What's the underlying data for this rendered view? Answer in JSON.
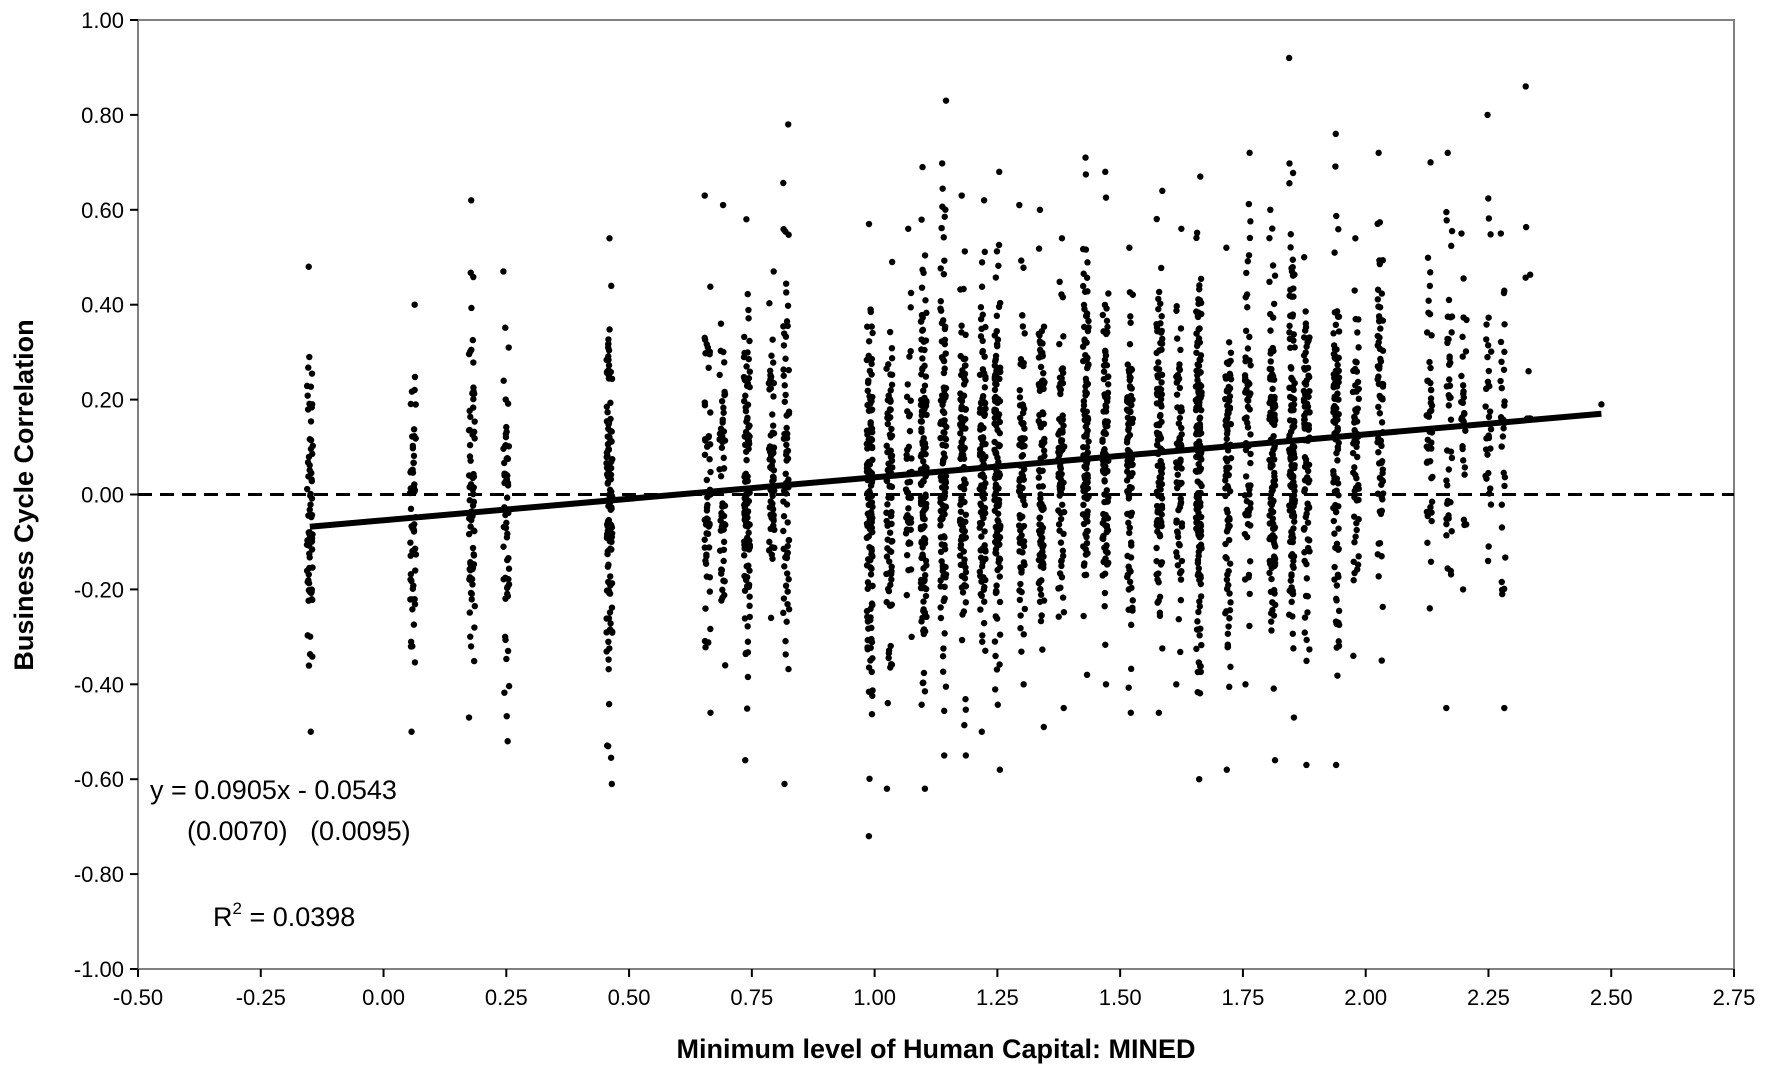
{
  "chart_data": {
    "type": "scatter",
    "xlabel": "Minimum level of Human Capital:  MINED",
    "ylabel": "Business Cycle Correlation",
    "xlim": [
      -0.5,
      2.75
    ],
    "ylim": [
      -1.0,
      1.0
    ],
    "x_ticks": [
      "-0.50",
      "-0.25",
      "0.00",
      "0.25",
      "0.50",
      "0.75",
      "1.00",
      "1.25",
      "1.50",
      "1.75",
      "2.00",
      "2.25",
      "2.50",
      "2.75"
    ],
    "y_ticks": [
      "1.00",
      "0.80",
      "0.60",
      "0.40",
      "0.20",
      "0.00",
      "-0.20",
      "-0.40",
      "-0.60",
      "-0.80",
      "-1.00"
    ],
    "reference_line": {
      "y": 0.0,
      "style": "dashed"
    },
    "trendline": {
      "slope": 0.0905,
      "intercept": -0.0543,
      "x_start": -0.15,
      "x_end": 2.48
    },
    "annotations": {
      "equation": "y = 0.0905x - 0.0543",
      "std_errors": "(0.0070)   (0.0095)",
      "r2_prefix": "R",
      "r2_sup": "2",
      "r2_value": " = 0.0398"
    },
    "series": [
      {
        "marker_color": "#000000",
        "columns": [
          {
            "x": -0.15,
            "ymin": -0.5,
            "ymax": 0.48,
            "n": 70
          },
          {
            "x": 0.06,
            "ymin": -0.5,
            "ymax": 0.4,
            "n": 55
          },
          {
            "x": 0.18,
            "ymin": -0.47,
            "ymax": 0.62,
            "n": 75
          },
          {
            "x": 0.25,
            "ymin": -0.52,
            "ymax": 0.47,
            "n": 60
          },
          {
            "x": 0.46,
            "ymin": -0.61,
            "ymax": 0.54,
            "n": 120
          },
          {
            "x": 0.66,
            "ymin": -0.46,
            "ymax": 0.63,
            "n": 55
          },
          {
            "x": 0.69,
            "ymin": -0.36,
            "ymax": 0.61,
            "n": 55
          },
          {
            "x": 0.74,
            "ymin": -0.56,
            "ymax": 0.58,
            "n": 110
          },
          {
            "x": 0.79,
            "ymin": -0.26,
            "ymax": 0.47,
            "n": 70
          },
          {
            "x": 0.82,
            "ymin": -0.61,
            "ymax": 0.78,
            "n": 70
          },
          {
            "x": 0.99,
            "ymin": -0.72,
            "ymax": 0.57,
            "n": 130
          },
          {
            "x": 1.03,
            "ymin": -0.62,
            "ymax": 0.49,
            "n": 90
          },
          {
            "x": 1.07,
            "ymin": -0.3,
            "ymax": 0.56,
            "n": 45
          },
          {
            "x": 1.1,
            "ymin": -0.62,
            "ymax": 0.69,
            "n": 140
          },
          {
            "x": 1.14,
            "ymin": -0.55,
            "ymax": 0.83,
            "n": 120
          },
          {
            "x": 1.18,
            "ymin": -0.55,
            "ymax": 0.63,
            "n": 110
          },
          {
            "x": 1.22,
            "ymin": -0.5,
            "ymax": 0.62,
            "n": 110
          },
          {
            "x": 1.25,
            "ymin": -0.58,
            "ymax": 0.68,
            "n": 130
          },
          {
            "x": 1.3,
            "ymin": -0.4,
            "ymax": 0.61,
            "n": 80
          },
          {
            "x": 1.34,
            "ymin": -0.49,
            "ymax": 0.6,
            "n": 100
          },
          {
            "x": 1.38,
            "ymin": -0.45,
            "ymax": 0.54,
            "n": 80
          },
          {
            "x": 1.43,
            "ymin": -0.38,
            "ymax": 0.71,
            "n": 110
          },
          {
            "x": 1.47,
            "ymin": -0.4,
            "ymax": 0.68,
            "n": 100
          },
          {
            "x": 1.52,
            "ymin": -0.46,
            "ymax": 0.52,
            "n": 90
          },
          {
            "x": 1.58,
            "ymin": -0.46,
            "ymax": 0.64,
            "n": 110
          },
          {
            "x": 1.62,
            "ymin": -0.4,
            "ymax": 0.56,
            "n": 70
          },
          {
            "x": 1.66,
            "ymin": -0.6,
            "ymax": 0.67,
            "n": 160
          },
          {
            "x": 1.72,
            "ymin": -0.58,
            "ymax": 0.52,
            "n": 90
          },
          {
            "x": 1.76,
            "ymin": -0.4,
            "ymax": 0.72,
            "n": 70
          },
          {
            "x": 1.81,
            "ymin": -0.56,
            "ymax": 0.6,
            "n": 120
          },
          {
            "x": 1.85,
            "ymin": -0.47,
            "ymax": 0.92,
            "n": 130
          },
          {
            "x": 1.88,
            "ymin": -0.57,
            "ymax": 0.5,
            "n": 90
          },
          {
            "x": 1.94,
            "ymin": -0.57,
            "ymax": 0.76,
            "n": 100
          },
          {
            "x": 1.98,
            "ymin": -0.34,
            "ymax": 0.54,
            "n": 60
          },
          {
            "x": 2.03,
            "ymin": -0.35,
            "ymax": 0.72,
            "n": 70
          },
          {
            "x": 2.13,
            "ymin": -0.24,
            "ymax": 0.7,
            "n": 45
          },
          {
            "x": 2.17,
            "ymin": -0.45,
            "ymax": 0.72,
            "n": 45
          },
          {
            "x": 2.2,
            "ymin": -0.2,
            "ymax": 0.55,
            "n": 30
          },
          {
            "x": 2.25,
            "ymin": -0.14,
            "ymax": 0.8,
            "n": 35
          },
          {
            "x": 2.28,
            "ymin": -0.45,
            "ymax": 0.55,
            "n": 30
          },
          {
            "x": 2.33,
            "ymin": 0.16,
            "ymax": 0.86,
            "n": 12
          }
        ]
      }
    ]
  }
}
